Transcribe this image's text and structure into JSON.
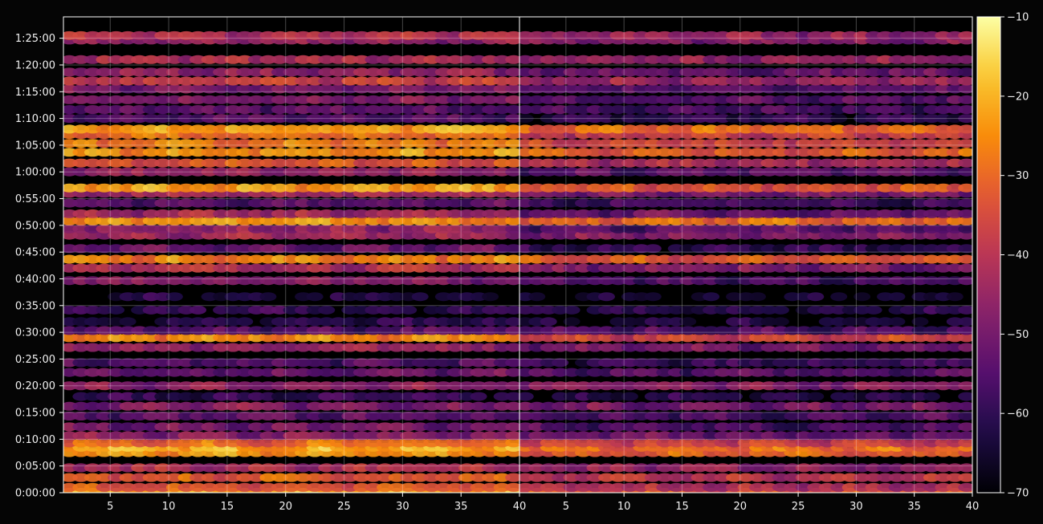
{
  "chart_data": {
    "type": "heatmap",
    "title": "",
    "xlabel": "",
    "ylabel": "",
    "panels": [
      {
        "name": "",
        "xlim": [
          1,
          40
        ]
      },
      {
        "name": "",
        "xlim": [
          1,
          40
        ]
      }
    ],
    "x_ticks": [
      "5",
      "10",
      "15",
      "20",
      "25",
      "30",
      "35",
      "40"
    ],
    "x_tick_values": [
      5,
      10,
      15,
      20,
      25,
      30,
      35,
      40
    ],
    "x_columns": 39,
    "y_ticks": [
      "0:00:00",
      "0:05:00",
      "0:10:00",
      "0:15:00",
      "0:20:00",
      "0:25:00",
      "0:30:00",
      "0:35:00",
      "0:40:00",
      "0:45:00",
      "0:50:00",
      "0:55:00",
      "1:00:00",
      "1:05:00",
      "1:10:00",
      "1:15:00",
      "1:20:00",
      "1:25:00"
    ],
    "y_tick_values": [
      0,
      300,
      600,
      900,
      1200,
      1500,
      1800,
      2100,
      2400,
      2700,
      3000,
      3300,
      3600,
      3900,
      4200,
      4500,
      4800,
      5100
    ],
    "ylim": [
      0,
      5340
    ],
    "colorbar": {
      "label": "",
      "ticks": [
        "−70",
        "−60",
        "−50",
        "−40",
        "−30",
        "−20",
        "−10"
      ],
      "tick_values": [
        -70,
        -60,
        -50,
        -40,
        -30,
        -20,
        -10
      ],
      "range": [
        -70,
        -10
      ],
      "colormap": "inferno"
    },
    "row_levels": [
      {
        "t": 5,
        "left": -22,
        "right": -33
      },
      {
        "t": 60,
        "left": -33,
        "right": -42
      },
      {
        "t": 170,
        "left": -32,
        "right": -40
      },
      {
        "t": 280,
        "left": -42,
        "right": -46
      },
      {
        "t": 450,
        "left": -24,
        "right": -31
      },
      {
        "t": 510,
        "left": -21,
        "right": -29
      },
      {
        "t": 560,
        "left": -30,
        "right": -38
      },
      {
        "t": 640,
        "left": -48,
        "right": -52
      },
      {
        "t": 740,
        "left": -50,
        "right": -56
      },
      {
        "t": 860,
        "left": -54,
        "right": -56
      },
      {
        "t": 970,
        "left": -48,
        "right": -50
      },
      {
        "t": 1080,
        "left": -60,
        "right": -62
      },
      {
        "t": 1200,
        "left": -47,
        "right": -48
      },
      {
        "t": 1350,
        "left": -52,
        "right": -55
      },
      {
        "t": 1460,
        "left": -56,
        "right": -60
      },
      {
        "t": 1630,
        "left": -45,
        "right": -50
      },
      {
        "t": 1740,
        "left": -25,
        "right": -36
      },
      {
        "t": 1820,
        "left": -55,
        "right": -56
      },
      {
        "t": 1920,
        "left": -62,
        "right": -64
      },
      {
        "t": 2050,
        "left": -60,
        "right": -62
      },
      {
        "t": 2200,
        "left": -63,
        "right": -66
      },
      {
        "t": 2380,
        "left": -48,
        "right": -56
      },
      {
        "t": 2520,
        "left": -41,
        "right": -49
      },
      {
        "t": 2620,
        "left": -26,
        "right": -33
      },
      {
        "t": 2740,
        "left": -52,
        "right": -60
      },
      {
        "t": 2890,
        "left": -44,
        "right": -48
      },
      {
        "t": 2960,
        "left": -46,
        "right": -54
      },
      {
        "t": 3050,
        "left": -24,
        "right": -30
      },
      {
        "t": 3130,
        "left": -44,
        "right": -52
      },
      {
        "t": 3250,
        "left": -54,
        "right": -58
      },
      {
        "t": 3360,
        "left": -44,
        "right": -50
      },
      {
        "t": 3420,
        "left": -22,
        "right": -32
      },
      {
        "t": 3600,
        "left": -46,
        "right": -54
      },
      {
        "t": 3700,
        "left": -33,
        "right": -42
      },
      {
        "t": 3820,
        "left": -24,
        "right": -32
      },
      {
        "t": 3920,
        "left": -28,
        "right": -36
      },
      {
        "t": 4020,
        "left": -28,
        "right": -38
      },
      {
        "t": 4080,
        "left": -22,
        "right": -30
      },
      {
        "t": 4200,
        "left": -54,
        "right": -60
      },
      {
        "t": 4300,
        "left": -54,
        "right": -57
      },
      {
        "t": 4410,
        "left": -49,
        "right": -55
      },
      {
        "t": 4530,
        "left": -50,
        "right": -55
      },
      {
        "t": 4620,
        "left": -38,
        "right": -45
      },
      {
        "t": 4720,
        "left": -46,
        "right": -52
      },
      {
        "t": 4860,
        "left": -42,
        "right": -46
      },
      {
        "t": 5080,
        "left": -46,
        "right": -48
      },
      {
        "t": 5130,
        "left": -40,
        "right": -46
      }
    ]
  }
}
